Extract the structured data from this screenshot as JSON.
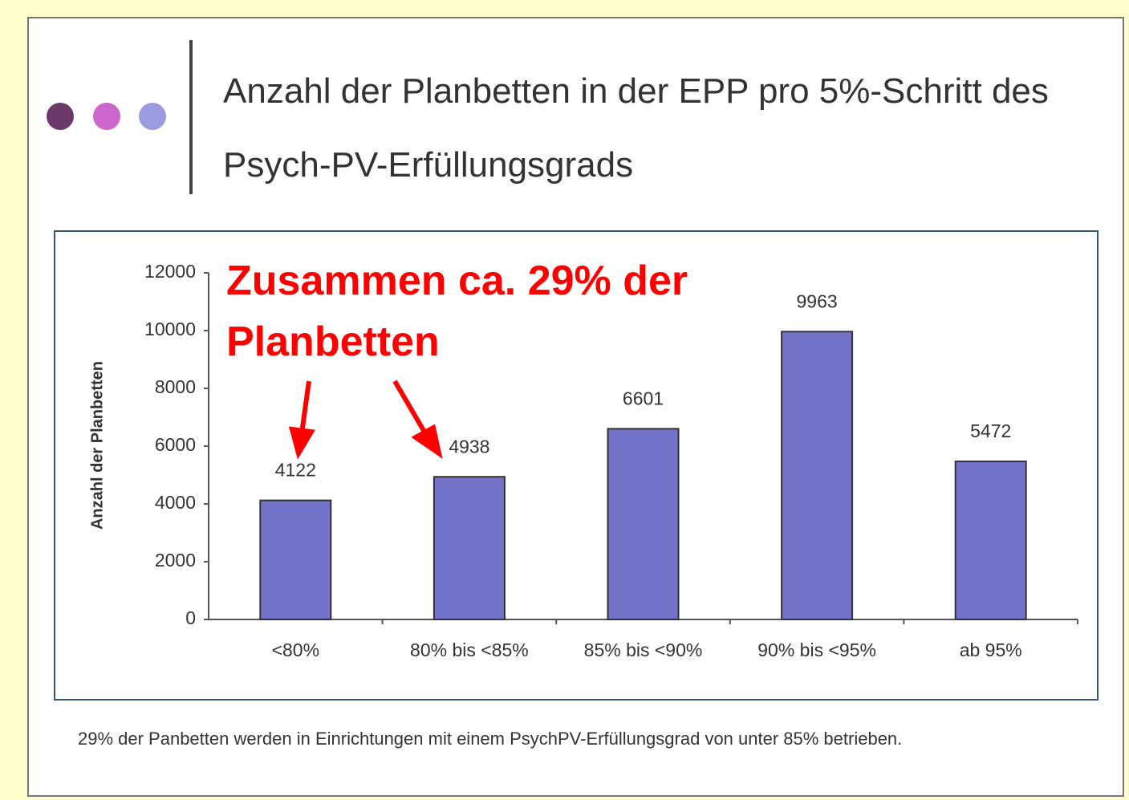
{
  "chart_data": {
    "type": "bar",
    "title": "Anzahl der Planbetten in der EPP pro 5%-Schritt des Psych-PV-Erfüllungsgrads",
    "y_label": "Anzahl der Planbetten",
    "annotation": "Zusammen ca. 29% der Planbetten",
    "footnote": "29% der Panbetten werden in Einrichtungen mit einem PsychPV-Erfüllungsgrad von unter 85% betrieben.",
    "categories": [
      "<80%",
      "80% bis <85%",
      "85% bis <90%",
      "90% bis <95%",
      "ab 95%"
    ],
    "values": [
      4122,
      4938,
      6601,
      9963,
      5472
    ],
    "color": "#7373c9",
    "ylim": [
      0,
      12000
    ],
    "yticks": [
      0,
      2000,
      4000,
      6000,
      8000,
      10000,
      12000
    ],
    "grid": false
  }
}
